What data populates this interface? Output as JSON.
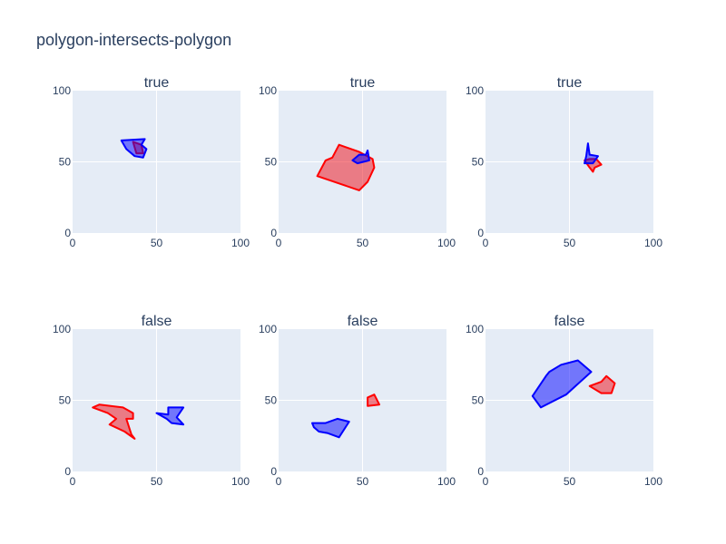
{
  "title": "polygon-intersects-polygon",
  "colors": {
    "background": "#ffffff",
    "plot_bg": "#e5ecf6",
    "grid": "#ffffff",
    "text": "#2a3f5f",
    "blue_line": "#0000ff",
    "blue_fill": "rgba(0,0,255,0.5)",
    "red_line": "#ff0000",
    "red_fill": "rgba(240,10,20,0.5)"
  },
  "chart_data": [
    {
      "type": "scatter",
      "subplot_title": "true",
      "xlim": [
        0,
        100
      ],
      "ylim": [
        0,
        100
      ],
      "xticks": [
        "0",
        "50",
        "100"
      ],
      "yticks": [
        "0",
        "50",
        "100"
      ],
      "grid": true,
      "series": [
        {
          "color": "red",
          "points": [
            [
              36,
              64
            ],
            [
              41,
              62
            ],
            [
              42,
              56
            ],
            [
              38,
              56
            ]
          ]
        },
        {
          "color": "blue",
          "points": [
            [
              29,
              65
            ],
            [
              43,
              66
            ],
            [
              41,
              62
            ],
            [
              44,
              59
            ],
            [
              42,
              53
            ],
            [
              37,
              54
            ],
            [
              32,
              59
            ]
          ]
        }
      ]
    },
    {
      "type": "scatter",
      "subplot_title": "true",
      "xlim": [
        0,
        100
      ],
      "ylim": [
        0,
        100
      ],
      "xticks": [
        "0",
        "50",
        "100"
      ],
      "yticks": [
        "0",
        "50",
        "100"
      ],
      "grid": true,
      "series": [
        {
          "color": "red",
          "points": [
            [
              23,
              40
            ],
            [
              28,
              51
            ],
            [
              32,
              53
            ],
            [
              36,
              62
            ],
            [
              48,
              57
            ],
            [
              56,
              52
            ],
            [
              57,
              46
            ],
            [
              53,
              36
            ],
            [
              48,
              30
            ]
          ]
        },
        {
          "color": "blue",
          "points": [
            [
              44,
              51
            ],
            [
              48,
              55
            ],
            [
              52,
              55
            ],
            [
              53,
              58
            ],
            [
              54,
              51
            ],
            [
              47,
              49
            ]
          ]
        }
      ]
    },
    {
      "type": "scatter",
      "subplot_title": "true",
      "xlim": [
        0,
        100
      ],
      "ylim": [
        0,
        100
      ],
      "xticks": [
        "0",
        "50",
        "100"
      ],
      "yticks": [
        "0",
        "50",
        "100"
      ],
      "grid": true,
      "series": [
        {
          "color": "red",
          "points": [
            [
              59,
              51
            ],
            [
              62,
              52
            ],
            [
              66,
              52
            ],
            [
              69,
              48
            ],
            [
              65,
              46
            ],
            [
              64,
              43
            ],
            [
              62,
              46
            ]
          ]
        },
        {
          "color": "blue",
          "points": [
            [
              59,
              49
            ],
            [
              60,
              54
            ],
            [
              61,
              63
            ],
            [
              62,
              55
            ],
            [
              67,
              54
            ],
            [
              64,
              49
            ]
          ]
        }
      ]
    },
    {
      "type": "scatter",
      "subplot_title": "false",
      "xlim": [
        0,
        100
      ],
      "ylim": [
        0,
        100
      ],
      "xticks": [
        "0",
        "50",
        "100"
      ],
      "yticks": [
        "0",
        "50",
        "100"
      ],
      "grid": true,
      "series": [
        {
          "color": "red",
          "points": [
            [
              12,
              45
            ],
            [
              16,
              47
            ],
            [
              30,
              45
            ],
            [
              36,
              41
            ],
            [
              36,
              37
            ],
            [
              32,
              37
            ],
            [
              35,
              26
            ],
            [
              37,
              23
            ],
            [
              31,
              28
            ],
            [
              22,
              33
            ],
            [
              26,
              37
            ],
            [
              21,
              41
            ]
          ]
        },
        {
          "color": "blue",
          "points": [
            [
              50,
              41
            ],
            [
              56,
              37
            ],
            [
              59,
              34
            ],
            [
              66,
              33
            ],
            [
              62,
              38
            ],
            [
              66,
              45
            ],
            [
              57,
              45
            ],
            [
              57,
              40
            ]
          ]
        }
      ]
    },
    {
      "type": "scatter",
      "subplot_title": "false",
      "xlim": [
        0,
        100
      ],
      "ylim": [
        0,
        100
      ],
      "xticks": [
        "0",
        "50",
        "100"
      ],
      "yticks": [
        "0",
        "50",
        "100"
      ],
      "grid": true,
      "series": [
        {
          "color": "red",
          "points": [
            [
              53,
              52
            ],
            [
              57,
              54
            ],
            [
              60,
              47
            ],
            [
              53,
              46
            ]
          ]
        },
        {
          "color": "blue",
          "points": [
            [
              20,
              34
            ],
            [
              21,
              31
            ],
            [
              24,
              28
            ],
            [
              29,
              27
            ],
            [
              36,
              24
            ],
            [
              42,
              35
            ],
            [
              35,
              37
            ],
            [
              28,
              34
            ]
          ]
        }
      ]
    },
    {
      "type": "scatter",
      "subplot_title": "false",
      "xlim": [
        0,
        100
      ],
      "ylim": [
        0,
        100
      ],
      "xticks": [
        "0",
        "50",
        "100"
      ],
      "yticks": [
        "0",
        "50",
        "100"
      ],
      "grid": true,
      "series": [
        {
          "color": "red",
          "points": [
            [
              62,
              60
            ],
            [
              69,
              55
            ],
            [
              75,
              55
            ],
            [
              77,
              62
            ],
            [
              72,
              67
            ],
            [
              69,
              63
            ]
          ]
        },
        {
          "color": "blue",
          "points": [
            [
              28,
              53
            ],
            [
              33,
              45
            ],
            [
              48,
              54
            ],
            [
              63,
              70
            ],
            [
              55,
              78
            ],
            [
              45,
              75
            ],
            [
              38,
              70
            ],
            [
              36,
              67
            ]
          ]
        }
      ]
    }
  ]
}
